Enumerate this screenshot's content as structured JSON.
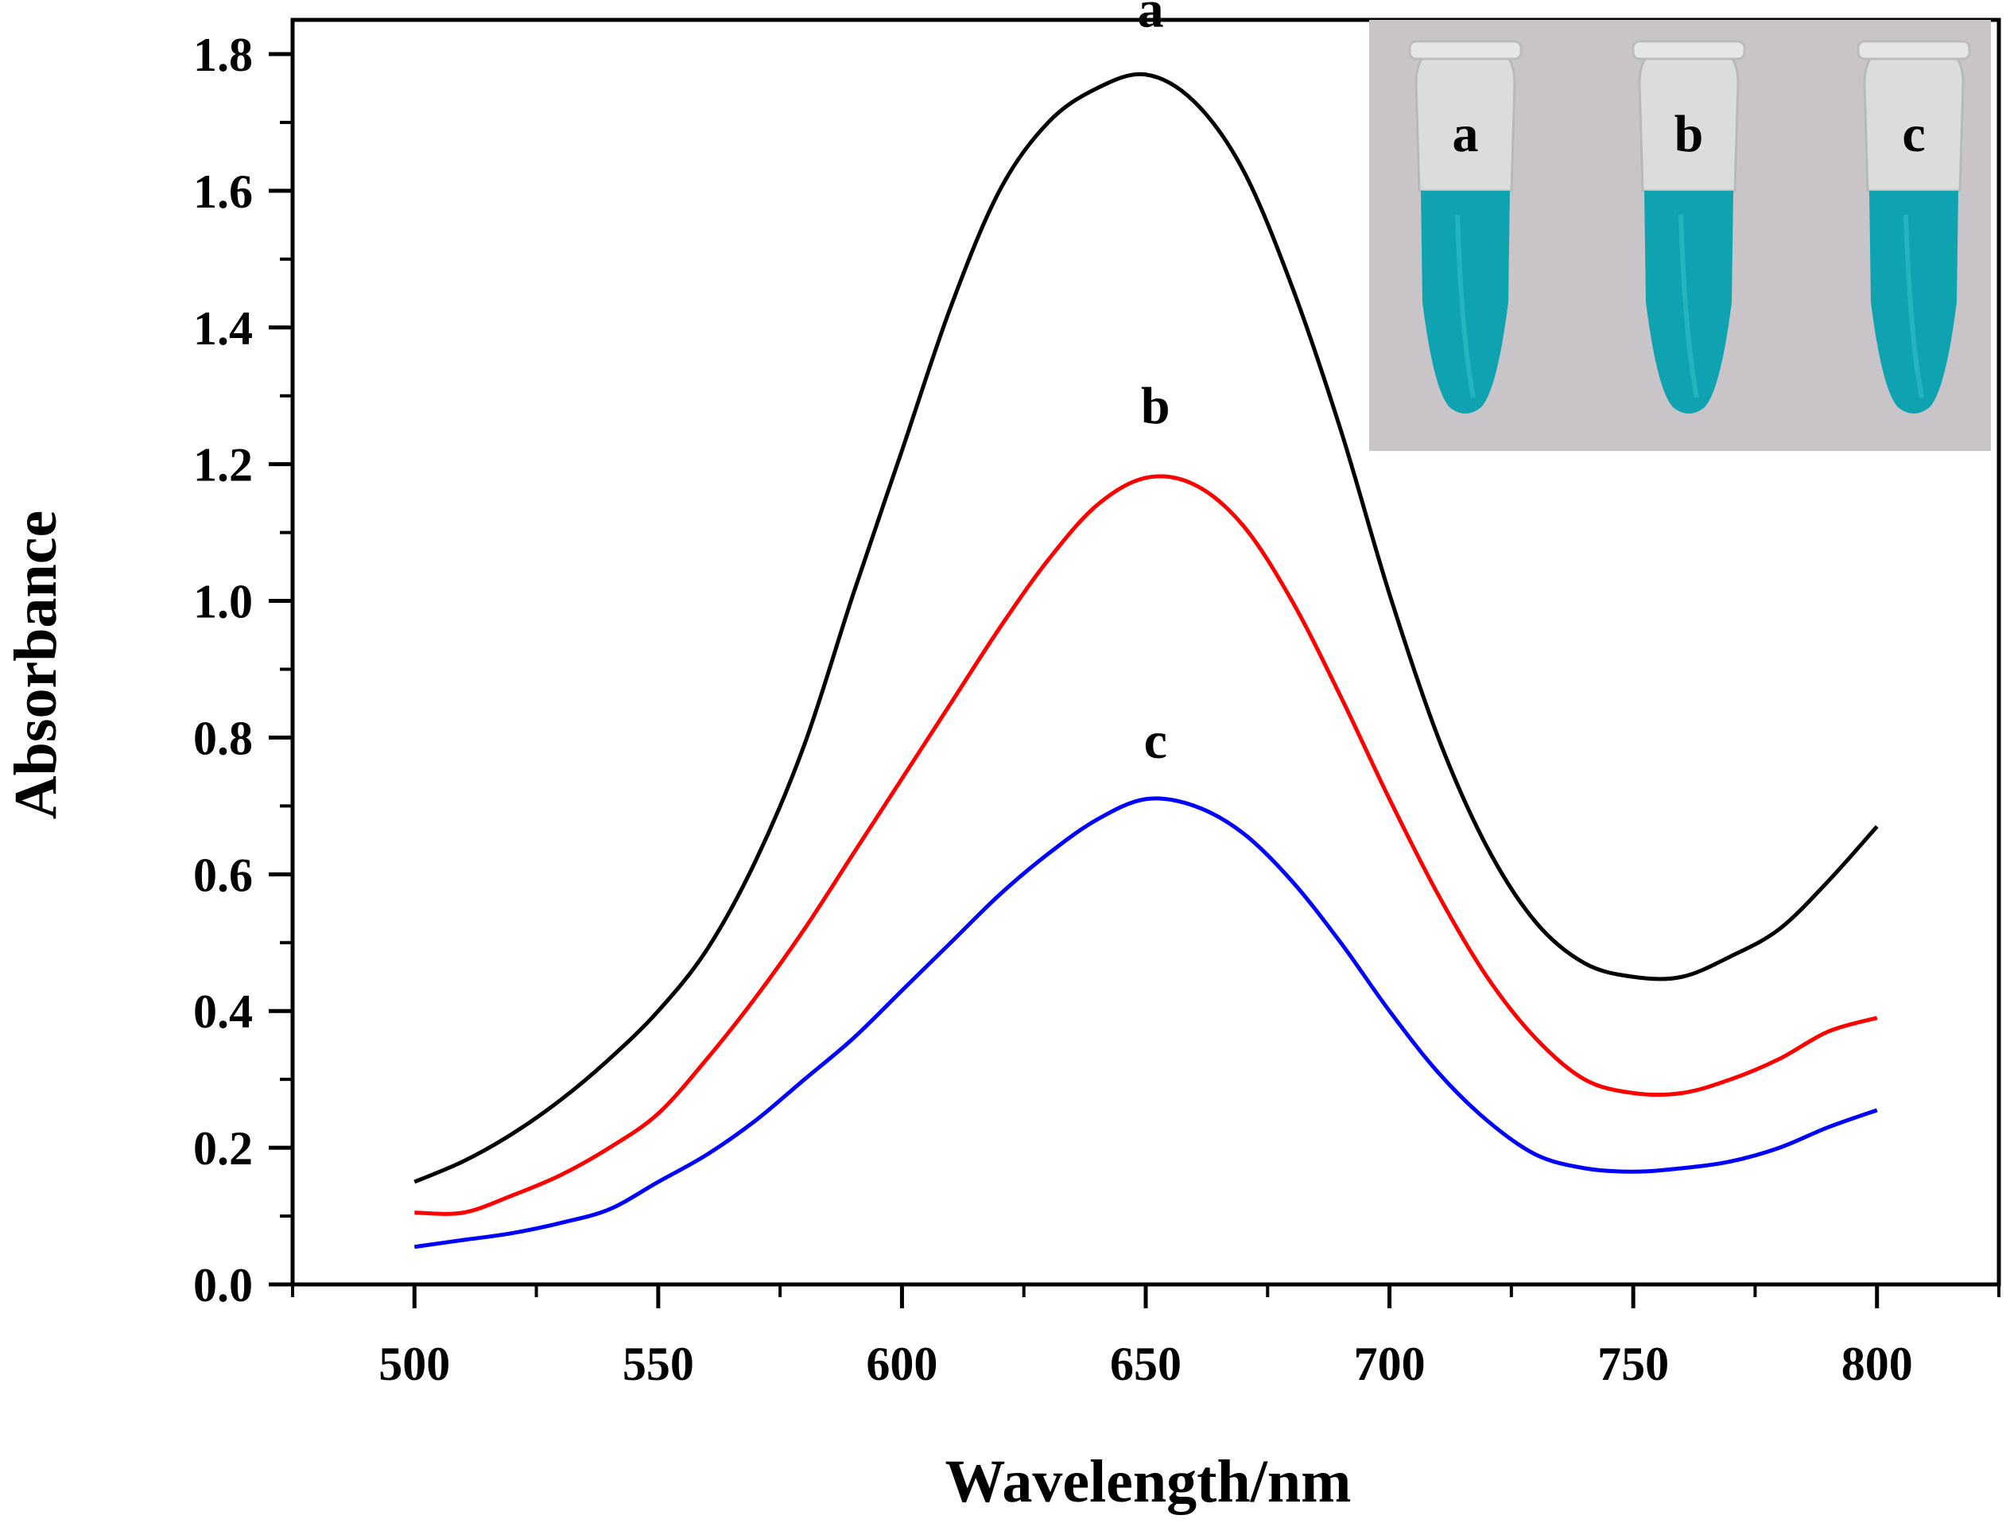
{
  "chart_data": {
    "type": "line",
    "title": "",
    "xlabel": "Wavelength/nm",
    "ylabel": "Absorbance",
    "xlim": [
      475,
      825
    ],
    "ylim": [
      0,
      1.85
    ],
    "xticks": [
      "500",
      "550",
      "600",
      "650",
      "700",
      "750",
      "800"
    ],
    "yticks": [
      "0.0",
      "0.2",
      "0.4",
      "0.6",
      "0.8",
      "1.0",
      "1.2",
      "1.4",
      "1.6",
      "1.8"
    ],
    "x": [
      500,
      510,
      520,
      530,
      540,
      550,
      560,
      570,
      580,
      590,
      600,
      610,
      620,
      630,
      640,
      650,
      660,
      670,
      680,
      690,
      700,
      710,
      720,
      730,
      740,
      750,
      760,
      770,
      780,
      790,
      800
    ],
    "series": [
      {
        "name": "a",
        "color": "#000000",
        "label_at": [
          651,
          1.84
        ],
        "values": [
          0.15,
          0.18,
          0.22,
          0.27,
          0.33,
          0.4,
          0.49,
          0.62,
          0.79,
          1.01,
          1.22,
          1.43,
          1.6,
          1.7,
          1.75,
          1.77,
          1.73,
          1.63,
          1.46,
          1.25,
          1.01,
          0.8,
          0.64,
          0.53,
          0.47,
          0.45,
          0.45,
          0.48,
          0.52,
          0.59,
          0.67
        ]
      },
      {
        "name": "b",
        "color": "#ff0000",
        "label_at": [
          652,
          1.26
        ],
        "values": [
          0.105,
          0.105,
          0.13,
          0.16,
          0.2,
          0.25,
          0.33,
          0.42,
          0.52,
          0.63,
          0.74,
          0.85,
          0.96,
          1.06,
          1.14,
          1.18,
          1.17,
          1.11,
          1.0,
          0.86,
          0.71,
          0.57,
          0.45,
          0.36,
          0.3,
          0.28,
          0.28,
          0.3,
          0.33,
          0.37,
          0.39
        ]
      },
      {
        "name": "c",
        "color": "#0000ff",
        "label_at": [
          652,
          0.77
        ],
        "values": [
          0.055,
          0.065,
          0.075,
          0.09,
          0.11,
          0.15,
          0.19,
          0.24,
          0.3,
          0.36,
          0.43,
          0.5,
          0.57,
          0.63,
          0.68,
          0.71,
          0.7,
          0.66,
          0.59,
          0.5,
          0.4,
          0.31,
          0.24,
          0.19,
          0.17,
          0.165,
          0.17,
          0.18,
          0.2,
          0.23,
          0.255
        ]
      }
    ]
  },
  "inset": {
    "description_labels": [
      "a",
      "b",
      "c"
    ],
    "background_color": "#c8c4c7",
    "liquid_color": "#0fa3b1"
  }
}
